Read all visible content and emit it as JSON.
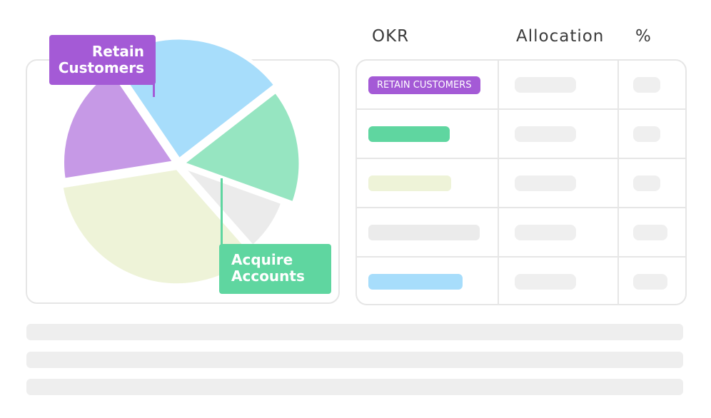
{
  "colors": {
    "purple": "#a45ad6",
    "purple_light": "#c699e6",
    "blue_light": "#a7ddfb",
    "green": "#5fd6a0",
    "green_light": "#96e5c1",
    "yellow_light": "#eef3d8",
    "gray_light": "#ebebeb"
  },
  "callouts": {
    "retain": [
      "Retain",
      "Customers"
    ],
    "acquire": [
      "Acquire",
      "Accounts"
    ]
  },
  "table": {
    "headers": {
      "okr": "OKR",
      "allocation": "Allocation",
      "percent": "%"
    },
    "rows": [
      {
        "okr_label": "RETAIN CUSTOMERS",
        "color": "#a45ad6"
      },
      {
        "okr_label": "",
        "color": "#5fd6a0"
      },
      {
        "okr_label": "",
        "color": "#eef3d8"
      },
      {
        "okr_label": "",
        "color": "#ebebeb"
      },
      {
        "okr_label": "",
        "color": "#a7ddfb"
      }
    ]
  },
  "chart_data": {
    "type": "pie",
    "slices": [
      {
        "label": "Retain Customers",
        "value": 18,
        "color": "#c699e6"
      },
      {
        "label": "",
        "value": 24,
        "color": "#a7ddfb"
      },
      {
        "label": "Acquire Accounts",
        "value": 16,
        "color": "#96e5c1"
      },
      {
        "label": "",
        "value": 8,
        "color": "#ebebeb"
      },
      {
        "label": "",
        "value": 34,
        "color": "#eef3d8"
      }
    ]
  }
}
